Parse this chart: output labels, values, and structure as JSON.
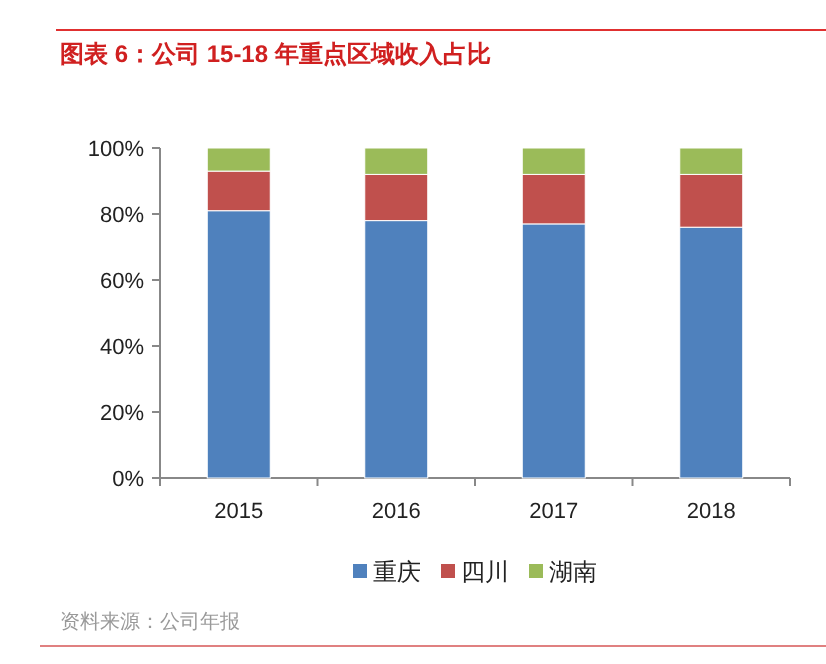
{
  "chart_data": {
    "type": "bar",
    "title": "图表 6：公司 15-18 年重点区域收入占比",
    "categories": [
      "2015",
      "2016",
      "2017",
      "2018"
    ],
    "stacked": true,
    "series": [
      {
        "name": "重庆",
        "color": "#4f81bd",
        "values": [
          81,
          78,
          77,
          76
        ]
      },
      {
        "name": "四川",
        "color": "#c0504d",
        "values": [
          12,
          14,
          15,
          16
        ]
      },
      {
        "name": "湖南",
        "color": "#9bbb59",
        "values": [
          7,
          8,
          8,
          8
        ]
      }
    ],
    "ylim": [
      0,
      100
    ],
    "yticks": [
      {
        "value": 0,
        "label": "0%"
      },
      {
        "value": 20,
        "label": "20%"
      },
      {
        "value": 40,
        "label": "40%"
      },
      {
        "value": 60,
        "label": "60%"
      },
      {
        "value": 80,
        "label": "80%"
      },
      {
        "value": 100,
        "label": "100%"
      }
    ],
    "legend": "bottom",
    "annotations": [
      "资料来源：公司年报"
    ]
  }
}
